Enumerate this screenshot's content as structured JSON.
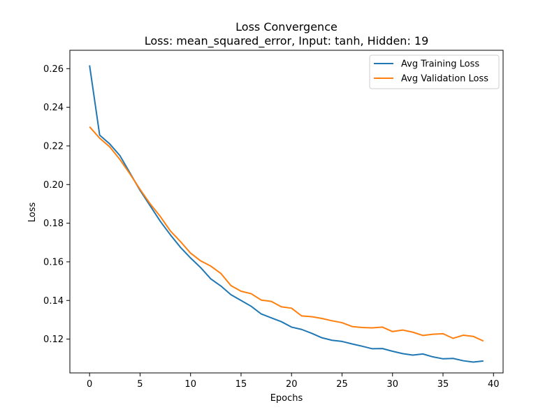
{
  "chart_data": {
    "type": "line",
    "title": "Loss Convergence",
    "subtitle": "Loss: mean_squared_error, Input: tanh, Hidden: 19",
    "xlabel": "Epochs",
    "ylabel": "Loss",
    "xlim": [
      -1.95,
      40.95
    ],
    "ylim": [
      0.1025,
      0.2695
    ],
    "x_ticks": [
      0,
      5,
      10,
      15,
      20,
      25,
      30,
      35,
      40
    ],
    "y_ticks": [
      0.12,
      0.14,
      0.16,
      0.18,
      0.2,
      0.22,
      0.24,
      0.26
    ],
    "y_tick_labels": [
      "0.12",
      "0.14",
      "0.16",
      "0.18",
      "0.20",
      "0.22",
      "0.24",
      "0.26"
    ],
    "x_tick_labels": [
      "0",
      "5",
      "10",
      "15",
      "20",
      "25",
      "30",
      "35",
      "40"
    ],
    "grid": false,
    "legend_position": "top-right",
    "x": [
      0,
      1,
      2,
      3,
      4,
      5,
      6,
      7,
      8,
      9,
      10,
      11,
      12,
      13,
      14,
      15,
      16,
      17,
      18,
      19,
      20,
      21,
      22,
      23,
      24,
      25,
      26,
      27,
      28,
      29,
      30,
      31,
      32,
      33,
      34,
      35,
      36,
      37,
      38,
      39
    ],
    "series": [
      {
        "name": "Avg Training Loss",
        "color": "#1f77b4",
        "values": [
          0.2617,
          0.2256,
          0.221,
          0.215,
          0.206,
          0.197,
          0.189,
          0.181,
          0.174,
          0.1675,
          0.162,
          0.157,
          0.1512,
          0.1475,
          0.143,
          0.14,
          0.137,
          0.133,
          0.131,
          0.129,
          0.1262,
          0.125,
          0.123,
          0.1207,
          0.1194,
          0.1188,
          0.1175,
          0.1163,
          0.115,
          0.1151,
          0.1137,
          0.1125,
          0.1117,
          0.1123,
          0.1108,
          0.1098,
          0.11,
          0.1088,
          0.1081,
          0.1087
        ]
      },
      {
        "name": "Avg Validation Loss",
        "color": "#ff7f0e",
        "values": [
          0.2299,
          0.224,
          0.2195,
          0.213,
          0.2055,
          0.1975,
          0.19,
          0.1835,
          0.176,
          0.1705,
          0.1645,
          0.1605,
          0.1578,
          0.154,
          0.1477,
          0.1448,
          0.1435,
          0.1402,
          0.1395,
          0.1367,
          0.136,
          0.132,
          0.1316,
          0.1307,
          0.1295,
          0.1285,
          0.1265,
          0.126,
          0.1258,
          0.1262,
          0.1239,
          0.1247,
          0.1236,
          0.1219,
          0.1225,
          0.1228,
          0.1204,
          0.122,
          0.1214,
          0.119
        ]
      }
    ]
  }
}
